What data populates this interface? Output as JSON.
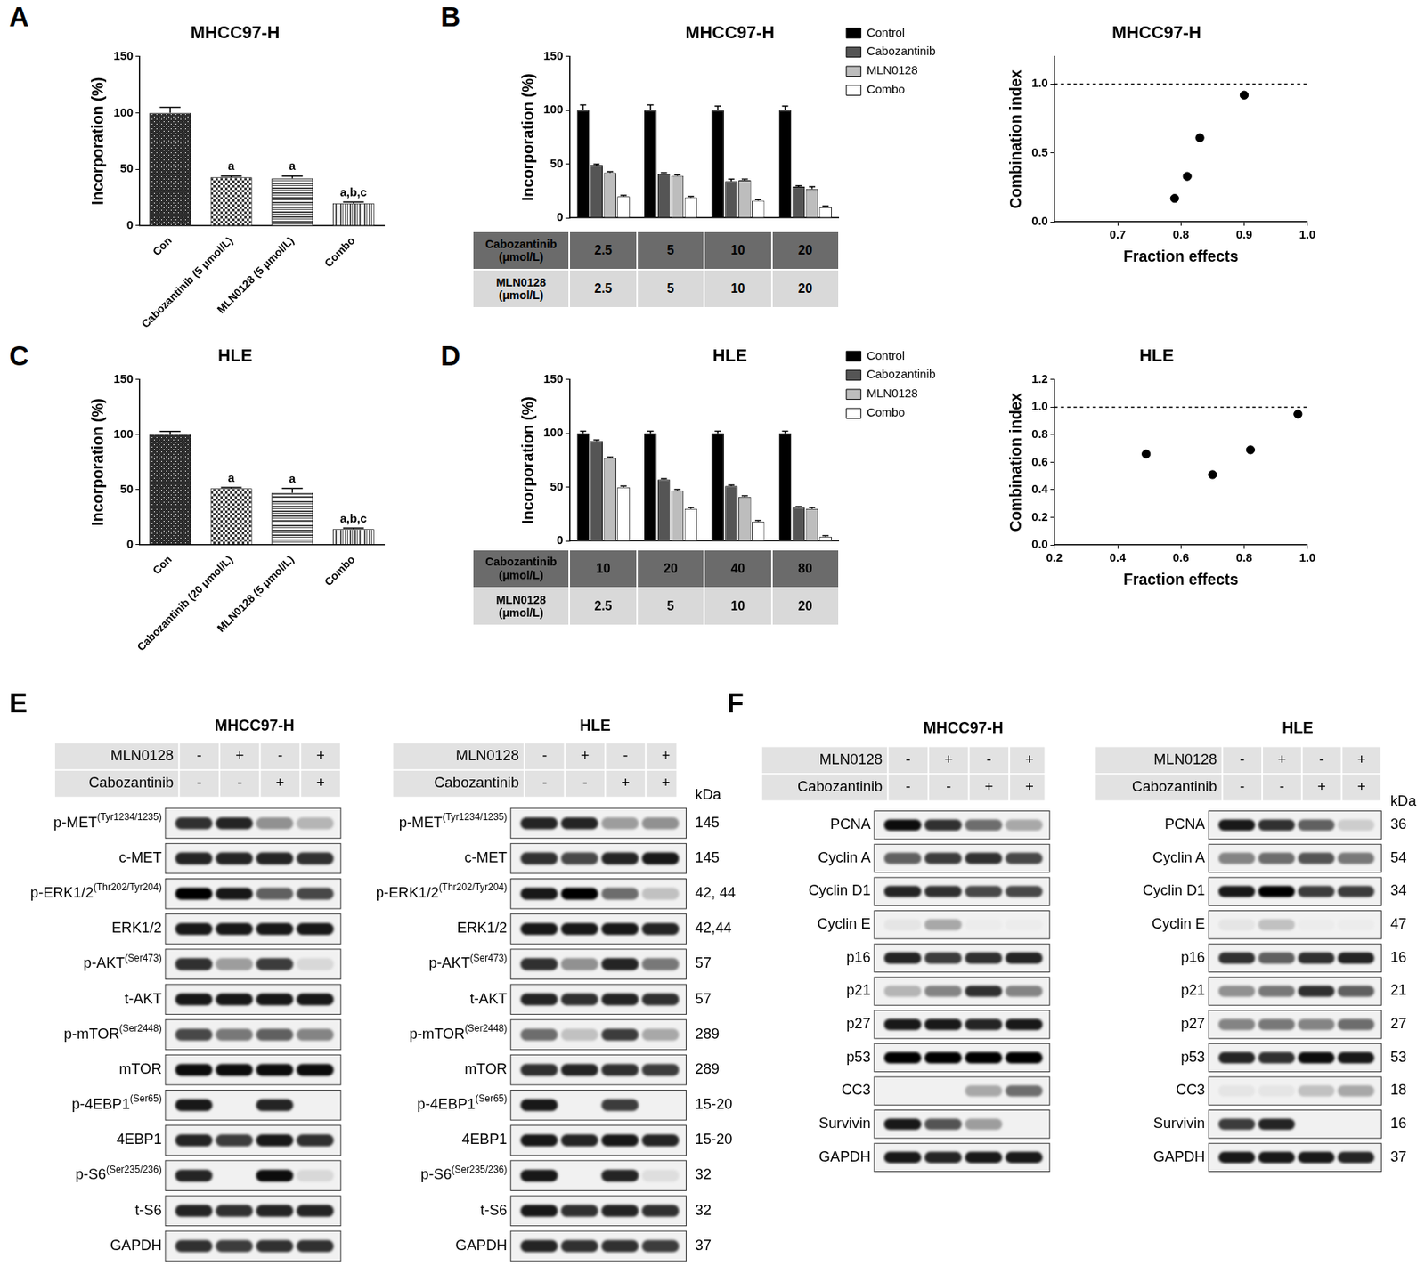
{
  "chart_data": [
    {
      "panel": "A",
      "type": "bar",
      "title": "MHCC97-H",
      "y_label": "Incorporation (%)",
      "categories": [
        "Con",
        "Cabozantinib (5 μmol/L)",
        "MLN0128 (5 μmol/L)",
        "Combo"
      ],
      "values": [
        100,
        43,
        42,
        20
      ],
      "errors": [
        5,
        1,
        2,
        1
      ],
      "significance": [
        null,
        "a",
        "a",
        "a,b,c"
      ],
      "colors": [
        "#2e2e2e",
        "#3c3c3c",
        "#4a4a4a",
        "#5a5a5a"
      ],
      "ylim": [
        0,
        150
      ],
      "yticks": [
        0,
        50,
        100,
        150
      ],
      "grid": false
    },
    {
      "panel": "B",
      "type": "bar",
      "title": "MHCC97-H",
      "y_label": "Incorporation (%)",
      "categories": [
        null,
        null,
        null,
        null
      ],
      "series": [
        {
          "name": "Control",
          "color": "#000000",
          "values": [
            100,
            100,
            100,
            100
          ],
          "errors": [
            5,
            5,
            4,
            4
          ]
        },
        {
          "name": "Cabozantinib",
          "color": "#555555",
          "values": [
            49,
            41,
            34,
            29
          ],
          "errors": [
            1,
            1,
            2,
            1
          ]
        },
        {
          "name": "MLN0128",
          "color": "#bdbdbd",
          "values": [
            42,
            39,
            35,
            27
          ],
          "errors": [
            1,
            1,
            1,
            2
          ]
        },
        {
          "name": "Combo",
          "color": "#ffffff",
          "values": [
            20,
            19,
            16,
            10
          ],
          "errors": [
            1,
            1,
            1,
            1
          ]
        }
      ],
      "dose_table": [
        {
          "label": "Cabozantinib (μmol/L)",
          "values": [
            2.5,
            5,
            10,
            20
          ]
        },
        {
          "label": "MLN0128 (μmol/L)",
          "values": [
            2.5,
            5,
            10,
            20
          ]
        }
      ],
      "ylim": [
        0,
        150
      ],
      "yticks": [
        0,
        50,
        100,
        150
      ],
      "legend": "right",
      "tick_labels": "y",
      "grid": false
    },
    {
      "type": "scatter",
      "title": "MHCC97-H",
      "x_label": "Fraction effects",
      "y_label": "Combination index",
      "x": [
        0.79,
        0.81,
        0.83,
        0.9
      ],
      "values": [
        0.17,
        0.33,
        0.61,
        0.92
      ],
      "color": "#000000",
      "marker": "circle",
      "reference_line": {
        "value": 1,
        "line_style": "dashed"
      },
      "xlim": [
        0.6,
        1.0
      ],
      "xticks": [
        0.7,
        0.8,
        0.9,
        {
          "value": 1,
          "label": "1.0"
        }
      ],
      "ylim": [
        0,
        1.2
      ],
      "yticks": [
        {
          "value": 0,
          "label": "0.0"
        },
        0.5,
        {
          "value": 1,
          "label": "1.0"
        }
      ],
      "grid": false
    },
    {
      "panel": "C",
      "type": "bar",
      "title": "HLE",
      "y_label": "Incorporation (%)",
      "categories": [
        "Con",
        "Cabozantinib (20 μmol/L)",
        "MLN0128 (5 μmol/L)",
        "Combo"
      ],
      "values": [
        100,
        51,
        47,
        14
      ],
      "errors": [
        3,
        1,
        4,
        1
      ],
      "significance": [
        null,
        "a",
        "a",
        "a,b,c"
      ],
      "colors": [
        "#2e2e2e",
        "#3c3c3c",
        "#4a4a4a",
        "#5a5a5a"
      ],
      "ylim": [
        0,
        150
      ],
      "yticks": [
        0,
        50,
        100,
        150
      ],
      "grid": false
    },
    {
      "panel": "D",
      "type": "bar",
      "title": "HLE",
      "y_label": "Incorporation (%)",
      "categories": [
        null,
        null,
        null,
        null
      ],
      "series": [
        {
          "name": "Control",
          "color": "#000000",
          "values": [
            100,
            100,
            100,
            100
          ],
          "errors": [
            2,
            2,
            2,
            2
          ]
        },
        {
          "name": "Cabozantinib",
          "color": "#555555",
          "values": [
            93,
            57,
            51,
            31
          ],
          "errors": [
            1,
            1,
            1,
            1
          ]
        },
        {
          "name": "MLN0128",
          "color": "#bdbdbd",
          "values": [
            77,
            47,
            41,
            30
          ],
          "errors": [
            1,
            1,
            1,
            1
          ]
        },
        {
          "name": "Combo",
          "color": "#ffffff",
          "values": [
            50,
            30,
            18,
            4
          ],
          "errors": [
            1,
            1,
            1,
            1
          ]
        }
      ],
      "dose_table": [
        {
          "label": "Cabozantinib (μmol/L)",
          "values": [
            10,
            20,
            40,
            80
          ]
        },
        {
          "label": "MLN0128 (μmol/L)",
          "values": [
            2.5,
            5,
            10,
            20
          ]
        }
      ],
      "ylim": [
        0,
        150
      ],
      "yticks": [
        0,
        50,
        100,
        150
      ],
      "legend": "right",
      "tick_labels": "y",
      "grid": false
    },
    {
      "type": "scatter",
      "title": "HLE",
      "x_label": "Fraction effects",
      "y_label": "Combination index",
      "x": [
        0.49,
        0.7,
        0.82,
        0.97
      ],
      "values": [
        0.66,
        0.51,
        0.69,
        0.95
      ],
      "color": "#000000",
      "marker": "circle",
      "reference_line": {
        "value": 1,
        "line_style": "dashed"
      },
      "xlim": [
        0.2,
        1.0
      ],
      "xticks": [
        0.2,
        0.4,
        0.6,
        0.8,
        {
          "value": 1,
          "label": "1.0"
        }
      ],
      "ylim": [
        0,
        1.2
      ],
      "yticks": [
        {
          "value": 0,
          "label": "0.0"
        },
        0.2,
        0.4,
        0.6,
        0.8,
        {
          "value": 1,
          "label": "1.0"
        },
        1.2
      ],
      "grid": false
    }
  ],
  "blots": [
    {
      "panel": "E",
      "title": "MHCC97-H",
      "treatments": [
        {
          "name": "MLN0128",
          "signs": [
            "-",
            "+",
            "-",
            "+"
          ]
        },
        {
          "name": "Cabozantinib",
          "signs": [
            "-",
            "-",
            "+",
            "+"
          ]
        }
      ],
      "rows": [
        {
          "label": "p-MET",
          "site": "(Tyr1234/1235)",
          "bands": [
            0.8,
            0.85,
            0.4,
            0.25
          ]
        },
        {
          "label": "c-MET",
          "bands": [
            0.85,
            0.85,
            0.85,
            0.8
          ]
        },
        {
          "label": "p-ERK1/2",
          "site": "(Thr202/Tyr204)",
          "bands": [
            1,
            0.9,
            0.6,
            0.7
          ]
        },
        {
          "label": "ERK1/2",
          "bands": [
            0.9,
            0.9,
            0.9,
            0.9
          ]
        },
        {
          "label": "p-AKT",
          "site": "(Ser473)",
          "bands": [
            0.8,
            0.35,
            0.75,
            0.1
          ]
        },
        {
          "label": "t-AKT",
          "bands": [
            0.9,
            0.9,
            0.9,
            0.9
          ]
        },
        {
          "label": "p-mTOR",
          "site": "(Ser2448)",
          "bands": [
            0.7,
            0.5,
            0.6,
            0.45
          ]
        },
        {
          "label": "mTOR",
          "bands": [
            0.95,
            0.95,
            0.95,
            0.95
          ]
        },
        {
          "label": "p-4EBP1",
          "site": "(Ser65)",
          "bands": [
            0.9,
            0,
            0.85,
            0
          ]
        },
        {
          "label": "4EBP1",
          "bands": [
            0.85,
            0.75,
            0.9,
            0.8
          ]
        },
        {
          "label": "p-S6",
          "site": "(Ser235/236)",
          "bands": [
            0.85,
            0,
            0.95,
            0.1
          ]
        },
        {
          "label": "t-S6",
          "bands": [
            0.85,
            0.8,
            0.85,
            0.85
          ]
        },
        {
          "label": "GAPDH",
          "bands": [
            0.8,
            0.75,
            0.8,
            0.8
          ]
        }
      ]
    },
    {
      "title": "HLE",
      "unit": "kDa",
      "treatments": [
        {
          "name": "MLN0128",
          "signs": [
            "-",
            "+",
            "-",
            "+"
          ]
        },
        {
          "name": "Cabozantinib",
          "signs": [
            "-",
            "-",
            "+",
            "+"
          ]
        }
      ],
      "rows": [
        {
          "label": "p-MET",
          "site": "(Tyr1234/1235)",
          "kda": "145",
          "bands": [
            0.85,
            0.85,
            0.35,
            0.4
          ]
        },
        {
          "label": "c-MET",
          "kda": "145",
          "bands": [
            0.8,
            0.7,
            0.85,
            0.9
          ]
        },
        {
          "label": "p-ERK1/2",
          "site": "(Thr202/Tyr204)",
          "kda": "42, 44",
          "bands": [
            0.9,
            1,
            0.55,
            0.2
          ]
        },
        {
          "label": "ERK1/2",
          "kda": "42,44",
          "bands": [
            0.9,
            0.9,
            0.9,
            0.85
          ]
        },
        {
          "label": "p-AKT",
          "site": "(Ser473)",
          "kda": "57",
          "bands": [
            0.8,
            0.4,
            0.85,
            0.5
          ]
        },
        {
          "label": "t-AKT",
          "kda": "57",
          "bands": [
            0.85,
            0.8,
            0.85,
            0.8
          ]
        },
        {
          "label": "p-mTOR",
          "site": "(Ser2448)",
          "kda": "289",
          "bands": [
            0.55,
            0.2,
            0.75,
            0.3
          ]
        },
        {
          "label": "mTOR",
          "kda": "289",
          "bands": [
            0.8,
            0.85,
            0.8,
            0.75
          ]
        },
        {
          "label": "p-4EBP1",
          "site": "(Ser65)",
          "kda": "15-20",
          "bands": [
            0.9,
            0,
            0.75,
            0
          ]
        },
        {
          "label": "4EBP1",
          "kda": "15-20",
          "bands": [
            0.9,
            0.85,
            0.9,
            0.85
          ]
        },
        {
          "label": "p-S6",
          "site": "(Ser235/236)",
          "kda": "32",
          "bands": [
            0.9,
            0,
            0.85,
            0.08
          ]
        },
        {
          "label": "t-S6",
          "kda": "32",
          "bands": [
            0.9,
            0.8,
            0.85,
            0.8
          ]
        },
        {
          "label": "GAPDH",
          "kda": "37",
          "bands": [
            0.85,
            0.8,
            0.8,
            0.75
          ]
        }
      ]
    },
    {
      "panel": "F",
      "title": "MHCC97-H",
      "treatments": [
        {
          "name": "MLN0128",
          "signs": [
            "-",
            "+",
            "-",
            "+"
          ]
        },
        {
          "name": "Cabozantinib",
          "signs": [
            "-",
            "-",
            "+",
            "+"
          ]
        }
      ],
      "rows": [
        {
          "label": "PCNA",
          "bands": [
            0.95,
            0.8,
            0.55,
            0.3
          ]
        },
        {
          "label": "Cyclin A",
          "bands": [
            0.6,
            0.75,
            0.8,
            0.7
          ]
        },
        {
          "label": "Cyclin D1",
          "bands": [
            0.85,
            0.8,
            0.7,
            0.7
          ]
        },
        {
          "label": "Cyclin E",
          "bands": [
            0.05,
            0.3,
            0.02,
            0.02
          ]
        },
        {
          "label": "p16",
          "bands": [
            0.85,
            0.75,
            0.8,
            0.85
          ]
        },
        {
          "label": "p21",
          "bands": [
            0.25,
            0.45,
            0.8,
            0.45
          ]
        },
        {
          "label": "p27",
          "bands": [
            0.9,
            0.9,
            0.85,
            0.9
          ]
        },
        {
          "label": "p53",
          "bands": [
            1,
            1,
            1,
            1
          ]
        },
        {
          "label": "CC3",
          "bands": [
            0,
            0,
            0.3,
            0.55
          ]
        },
        {
          "label": "Survivin",
          "bands": [
            0.9,
            0.65,
            0.35,
            0
          ]
        },
        {
          "label": "GAPDH",
          "bands": [
            0.9,
            0.85,
            0.9,
            0.9
          ]
        }
      ]
    },
    {
      "title": "HLE",
      "unit": "kDa",
      "treatments": [
        {
          "name": "MLN0128",
          "signs": [
            "-",
            "+",
            "-",
            "+"
          ]
        },
        {
          "name": "Cabozantinib",
          "signs": [
            "-",
            "-",
            "+",
            "+"
          ]
        }
      ],
      "rows": [
        {
          "label": "PCNA",
          "kda": "36",
          "bands": [
            0.9,
            0.8,
            0.6,
            0.15
          ]
        },
        {
          "label": "Cyclin A",
          "kda": "54",
          "bands": [
            0.45,
            0.55,
            0.65,
            0.5
          ]
        },
        {
          "label": "Cyclin D1",
          "kda": "34",
          "bands": [
            0.9,
            1,
            0.75,
            0.75
          ]
        },
        {
          "label": "Cyclin E",
          "kda": "47",
          "bands": [
            0.05,
            0.2,
            0.02,
            0.02
          ]
        },
        {
          "label": "p16",
          "kda": "16",
          "bands": [
            0.8,
            0.6,
            0.8,
            0.85
          ]
        },
        {
          "label": "p21",
          "kda": "21",
          "bands": [
            0.4,
            0.5,
            0.8,
            0.6
          ]
        },
        {
          "label": "p27",
          "kda": "27",
          "bands": [
            0.45,
            0.5,
            0.45,
            0.55
          ]
        },
        {
          "label": "p53",
          "kda": "53",
          "bands": [
            0.85,
            0.8,
            0.95,
            0.9
          ]
        },
        {
          "label": "CC3",
          "kda": "18",
          "bands": [
            0.05,
            0.05,
            0.2,
            0.3
          ]
        },
        {
          "label": "Survivin",
          "kda": "16",
          "bands": [
            0.75,
            0.85,
            0,
            0
          ]
        },
        {
          "label": "GAPDH",
          "kda": "37",
          "bands": [
            0.9,
            0.9,
            0.9,
            0.85
          ]
        }
      ]
    }
  ]
}
